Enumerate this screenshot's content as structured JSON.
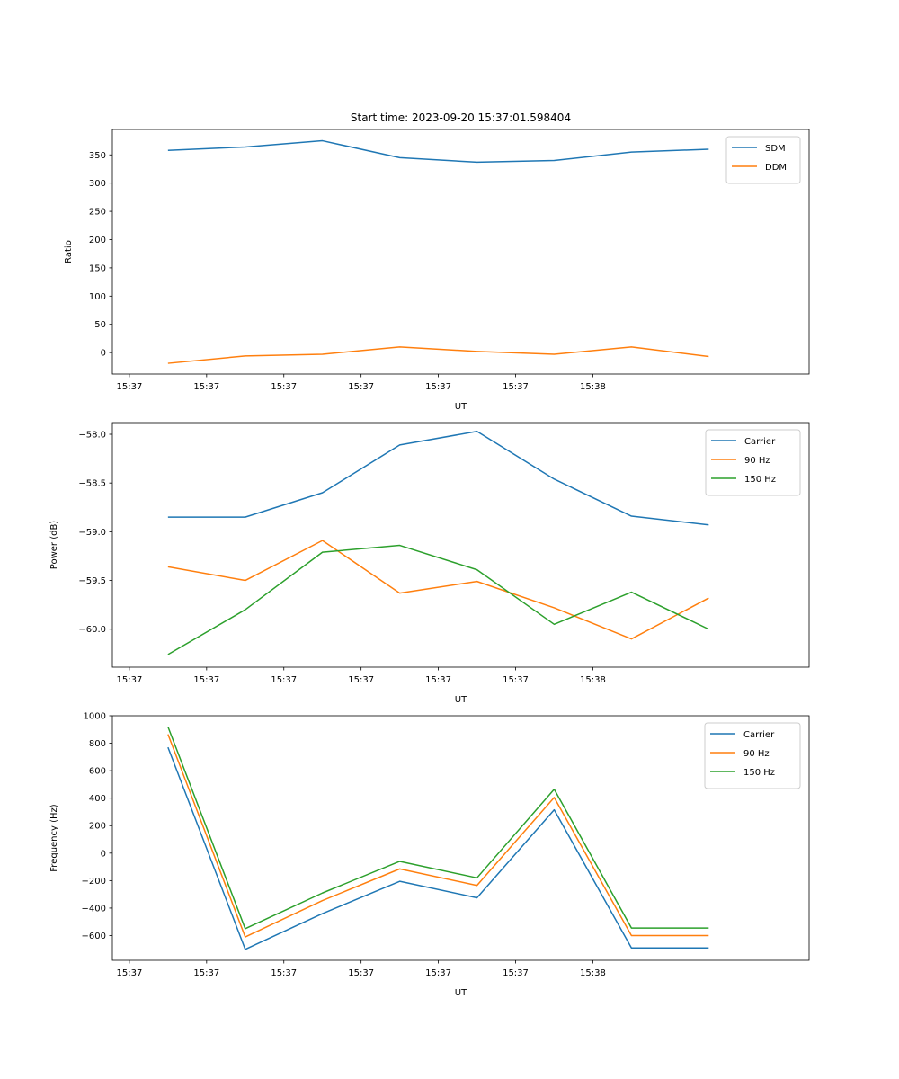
{
  "figure": {
    "title": "Start time: 2023-09-20 15:37:01.598404"
  },
  "chart_data": [
    {
      "type": "line",
      "xlabel": "UT",
      "ylabel": "Ratio",
      "x_ticks": [
        "15:37",
        "15:37",
        "15:37",
        "15:37",
        "15:37",
        "15:37",
        "15:38"
      ],
      "xlim": [
        -0.22,
        8.8
      ],
      "ylim": [
        -38,
        395
      ],
      "y_ticks": [
        0,
        50,
        100,
        150,
        200,
        250,
        300,
        350
      ],
      "y_tick_labels": [
        "0",
        "50",
        "100",
        "150",
        "200",
        "250",
        "300",
        "350"
      ],
      "x": [
        0.5,
        1.5,
        2.5,
        3.5,
        4.5,
        5.5,
        6.5,
        7.5
      ],
      "legend_position": "upper right",
      "series": [
        {
          "name": "SDM",
          "color": "#1f77b4",
          "values": [
            358,
            364,
            375,
            345,
            337,
            340,
            355,
            360
          ]
        },
        {
          "name": "DDM",
          "color": "#ff7f0e",
          "values": [
            -19,
            -6,
            -3,
            10,
            2,
            -3,
            10,
            -7
          ]
        }
      ]
    },
    {
      "type": "line",
      "xlabel": "UT",
      "ylabel": "Power (dB)",
      "x_ticks": [
        "15:37",
        "15:37",
        "15:37",
        "15:37",
        "15:37",
        "15:37",
        "15:38"
      ],
      "xlim": [
        -0.22,
        8.8
      ],
      "ylim": [
        -60.39,
        -57.88
      ],
      "y_ticks": [
        -60.0,
        -59.5,
        -59.0,
        -58.5,
        -58.0
      ],
      "y_tick_labels": [
        "−60.0",
        "−59.5",
        "−59.0",
        "−58.5",
        "−58.0"
      ],
      "x": [
        0.5,
        1.5,
        2.5,
        3.5,
        4.5,
        5.5,
        6.5,
        7.5
      ],
      "legend_position": "upper right",
      "series": [
        {
          "name": "Carrier",
          "color": "#1f77b4",
          "values": [
            -58.85,
            -58.85,
            -58.6,
            -58.11,
            -57.97,
            -58.46,
            -58.84,
            -58.93
          ]
        },
        {
          "name": "90 Hz",
          "color": "#ff7f0e",
          "values": [
            -59.36,
            -59.5,
            -59.09,
            -59.63,
            -59.51,
            -59.78,
            -60.1,
            -59.68
          ]
        },
        {
          "name": "150 Hz",
          "color": "#2ca02c",
          "values": [
            -60.26,
            -59.8,
            -59.21,
            -59.14,
            -59.39,
            -59.95,
            -59.62,
            -60.0
          ]
        }
      ]
    },
    {
      "type": "line",
      "xlabel": "UT",
      "ylabel": "Frequency (Hz)",
      "x_ticks": [
        "15:37",
        "15:37",
        "15:37",
        "15:37",
        "15:37",
        "15:37",
        "15:38"
      ],
      "xlim": [
        -0.22,
        8.8
      ],
      "ylim": [
        -780,
        1000
      ],
      "y_ticks": [
        -600,
        -400,
        -200,
        0,
        200,
        400,
        600,
        800,
        1000
      ],
      "y_tick_labels": [
        "−600",
        "−400",
        "−200",
        "0",
        "200",
        "400",
        "600",
        "800",
        "1000"
      ],
      "x": [
        0.5,
        1.5,
        2.5,
        3.5,
        4.5,
        5.5,
        6.5,
        7.5
      ],
      "legend_position": "upper right",
      "series": [
        {
          "name": "Carrier",
          "color": "#1f77b4",
          "values": [
            770,
            -700,
            -440,
            -205,
            -325,
            315,
            -690,
            -690
          ]
        },
        {
          "name": "90 Hz",
          "color": "#ff7f0e",
          "values": [
            865,
            -610,
            -345,
            -115,
            -235,
            405,
            -600,
            -600
          ]
        },
        {
          "name": "150 Hz",
          "color": "#2ca02c",
          "values": [
            920,
            -550,
            -290,
            -60,
            -180,
            465,
            -545,
            -545
          ]
        }
      ]
    }
  ]
}
